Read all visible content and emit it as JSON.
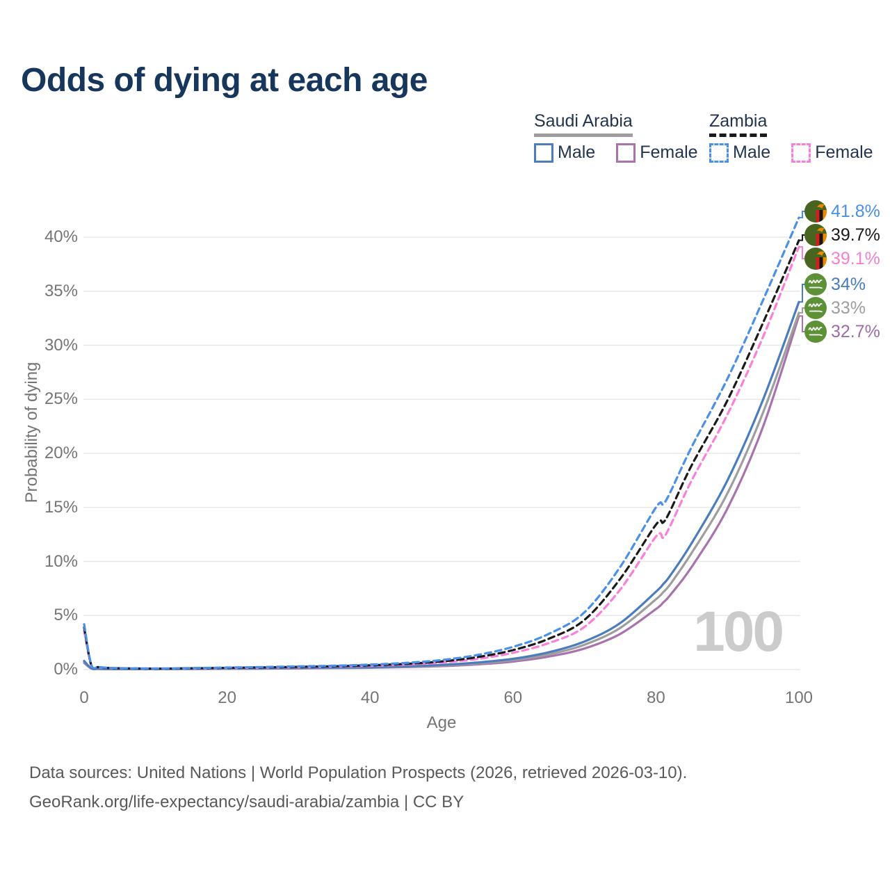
{
  "title": "Odds of dying at each age",
  "watermark": "100",
  "footer": {
    "line1": "Data sources: United Nations | World Population Prospects (2026, retrieved 2026-03-10).",
    "line2": "GeoRank.org/life-expectancy/saudi-arabia/zambia | CC BY"
  },
  "colors": {
    "title_text": "#17365c",
    "axis_text": "#757575",
    "gridline": "#e8e8e8",
    "legend_text": "#22344e",
    "watermark": "#cbcbcb",
    "footer_text": "#595959",
    "saudi_male": "#4a7cbe",
    "saudi_female": "#a873ad",
    "saudi_overall": "#9e9e9e",
    "zambia_male": "#4a90e8",
    "zambia_female": "#f97fd9",
    "zambia_overall": "#1a1a1a"
  },
  "legend": {
    "groups": [
      {
        "name": "Saudi Arabia",
        "line_style": "solid",
        "underline_color": "#9e9e9e",
        "items": [
          {
            "label": "Male",
            "color": "#4a7cbe",
            "dashed": false
          },
          {
            "label": "Female",
            "color": "#a873ad",
            "dashed": false
          }
        ]
      },
      {
        "name": "Zambia",
        "line_style": "dashed",
        "underline_color": "#1a1a1a",
        "items": [
          {
            "label": "Male",
            "color": "#4a90e8",
            "dashed": true
          },
          {
            "label": "Female",
            "color": "#f97fd9",
            "dashed": true
          }
        ]
      }
    ]
  },
  "chart_data": {
    "type": "line",
    "title": "Odds of dying at each age",
    "xlabel": "Age",
    "ylabel": "Probability of dying",
    "xlim": [
      0,
      100
    ],
    "ylim_percent": [
      0,
      42
    ],
    "grid": "horizontal-only",
    "legend_position": "top-right",
    "xticks": [
      0,
      20,
      40,
      60,
      80,
      100
    ],
    "yticks_percent": [
      0,
      5,
      10,
      15,
      20,
      25,
      30,
      35,
      40
    ],
    "ytick_labels": [
      "0%",
      "5%",
      "10%",
      "15%",
      "20%",
      "25%",
      "30%",
      "35%",
      "40%"
    ],
    "x_ages": [
      0,
      1,
      2,
      3,
      5,
      10,
      15,
      20,
      25,
      30,
      35,
      40,
      45,
      50,
      55,
      60,
      65,
      70,
      75,
      80,
      81,
      82,
      85,
      90,
      95,
      100
    ],
    "series": [
      {
        "name": "Saudi Arabia — Female",
        "country": "Saudi Arabia",
        "sex": "Female",
        "color": "#a873ad",
        "dashed": false,
        "label_row": 5,
        "end_label": "32.7%",
        "end_label_color": "#9c6da8",
        "flag": "saudi",
        "values_percent": [
          0.62,
          0.1,
          0.06,
          0.05,
          0.04,
          0.04,
          0.06,
          0.07,
          0.09,
          0.11,
          0.14,
          0.17,
          0.23,
          0.32,
          0.48,
          0.74,
          1.2,
          1.95,
          3.3,
          5.6,
          6.2,
          6.9,
          9.5,
          14.9,
          22.5,
          32.7
        ]
      },
      {
        "name": "Saudi Arabia — Both sexes",
        "country": "Saudi Arabia",
        "sex": "Both",
        "color": "#9e9e9e",
        "dashed": false,
        "label_row": 4,
        "end_label": "33%",
        "end_label_color": "#9e9e9e",
        "flag": "saudi",
        "values_percent": [
          0.72,
          0.11,
          0.07,
          0.055,
          0.045,
          0.045,
          0.07,
          0.09,
          0.11,
          0.13,
          0.16,
          0.2,
          0.27,
          0.38,
          0.57,
          0.88,
          1.4,
          2.3,
          3.85,
          6.5,
          7.15,
          7.9,
          10.8,
          16.3,
          23.8,
          33.0
        ]
      },
      {
        "name": "Saudi Arabia — Male",
        "country": "Saudi Arabia",
        "sex": "Male",
        "color": "#4a7cbe",
        "dashed": false,
        "label_row": 3,
        "end_label": "34%",
        "end_label_color": "#4a7cbe",
        "flag": "saudi",
        "values_percent": [
          0.8,
          0.12,
          0.08,
          0.06,
          0.05,
          0.05,
          0.08,
          0.11,
          0.13,
          0.15,
          0.18,
          0.22,
          0.3,
          0.43,
          0.65,
          1.0,
          1.6,
          2.6,
          4.3,
          7.2,
          7.9,
          8.7,
          11.7,
          17.5,
          25.0,
          34.0
        ]
      },
      {
        "name": "Zambia — Female",
        "country": "Zambia",
        "sex": "Female",
        "color": "#f97fd9",
        "dashed": true,
        "label_row": 2,
        "end_label": "39.1%",
        "end_label_color": "#f47fd4",
        "flag": "zambia",
        "values_percent": [
          3.6,
          0.4,
          0.21,
          0.15,
          0.11,
          0.08,
          0.11,
          0.14,
          0.18,
          0.22,
          0.28,
          0.35,
          0.46,
          0.65,
          0.98,
          1.55,
          2.45,
          3.95,
          7.4,
          12.3,
          12.2,
          13.3,
          17.5,
          23.6,
          30.8,
          39.1
        ]
      },
      {
        "name": "Zambia — Both sexes",
        "country": "Zambia",
        "sex": "Both",
        "color": "#1a1a1a",
        "dashed": true,
        "label_row": 1,
        "end_label": "39.7%",
        "end_label_color": "#1a1a1a",
        "flag": "zambia",
        "values_percent": [
          3.9,
          0.42,
          0.23,
          0.16,
          0.12,
          0.09,
          0.12,
          0.16,
          0.2,
          0.25,
          0.31,
          0.4,
          0.53,
          0.75,
          1.15,
          1.8,
          2.85,
          4.6,
          8.4,
          13.4,
          13.6,
          14.7,
          18.9,
          24.9,
          32.1,
          39.7
        ]
      },
      {
        "name": "Zambia — Male",
        "country": "Zambia",
        "sex": "Male",
        "color": "#4a90e8",
        "dashed": true,
        "label_row": 0,
        "end_label": "41.8%",
        "end_label_color": "#4a90e2",
        "flag": "zambia",
        "values_percent": [
          4.2,
          0.45,
          0.25,
          0.18,
          0.13,
          0.1,
          0.14,
          0.19,
          0.24,
          0.3,
          0.36,
          0.46,
          0.62,
          0.88,
          1.35,
          2.1,
          3.3,
          5.3,
          9.5,
          15.0,
          15.3,
          16.4,
          20.6,
          26.9,
          34.2,
          41.8
        ]
      }
    ]
  }
}
